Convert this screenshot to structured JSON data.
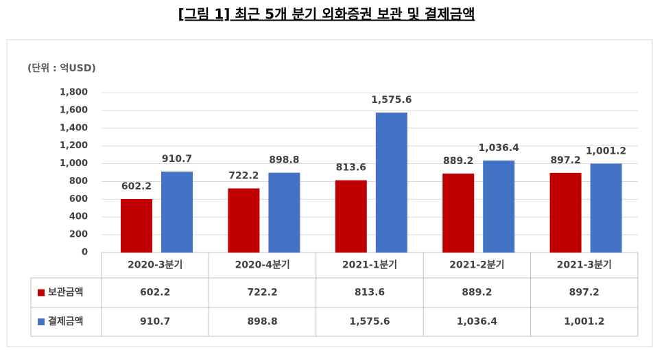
{
  "chart_data": {
    "type": "bar",
    "title": "[그림 1] 최근 5개 분기 외화증권 보관 및 결제금액",
    "unit_label": "(단위 : 억USD)",
    "categories": [
      "2020-3분기",
      "2020-4분기",
      "2021-1분기",
      "2021-2분기",
      "2021-3분기"
    ],
    "series": [
      {
        "name": "보관금액",
        "color": "#c00000",
        "values": [
          602.2,
          722.2,
          813.6,
          889.2,
          897.2
        ],
        "value_labels": [
          "602.2",
          "722.2",
          "813.6",
          "889.2",
          "897.2"
        ]
      },
      {
        "name": "결제금액",
        "color": "#4472c4",
        "values": [
          910.7,
          898.8,
          1575.6,
          1036.4,
          1001.2
        ],
        "value_labels": [
          "910.7",
          "898.8",
          "1,575.6",
          "1,036.4",
          "1,001.2"
        ]
      }
    ],
    "ylim": [
      0,
      1800
    ],
    "yticks": [
      0,
      200,
      400,
      600,
      800,
      {
        "value": 1000,
        "label": "1,000"
      },
      {
        "value": 1200,
        "label": "1,200"
      },
      {
        "value": 1400,
        "label": "1,400"
      },
      {
        "value": 1600,
        "label": "1,600"
      },
      {
        "value": 1800,
        "label": "1,800"
      }
    ],
    "grid": true
  }
}
